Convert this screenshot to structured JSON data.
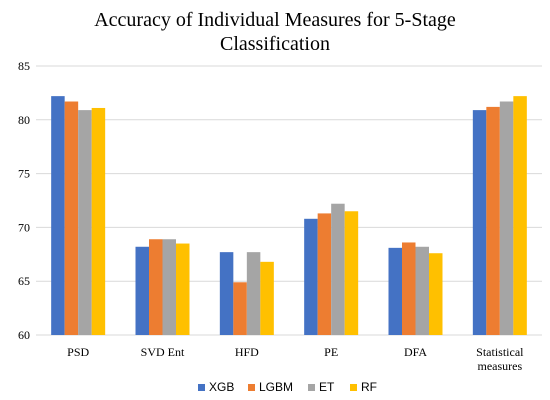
{
  "chart_data": {
    "type": "bar",
    "title": "Accuracy of Individual Measures for 5-Stage Classification",
    "title_lines": [
      "Accuracy of Individual Measures for 5-Stage",
      "Classification"
    ],
    "categories": [
      "PSD",
      "SVD Ent",
      "HFD",
      "PE",
      "DFA",
      "Statistical measures"
    ],
    "category_label_lines": [
      [
        "PSD"
      ],
      [
        "SVD Ent"
      ],
      [
        "HFD"
      ],
      [
        "PE"
      ],
      [
        "DFA"
      ],
      [
        "Statistical",
        "measures"
      ]
    ],
    "series": [
      {
        "name": "XGB",
        "color": "#4472C4",
        "values": [
          82.2,
          68.2,
          67.7,
          70.8,
          68.1,
          80.9
        ]
      },
      {
        "name": "LGBM",
        "color": "#ED7D31",
        "values": [
          81.7,
          68.9,
          64.9,
          71.3,
          68.6,
          81.2
        ]
      },
      {
        "name": "ET",
        "color": "#A5A5A5",
        "values": [
          80.9,
          68.9,
          67.7,
          72.2,
          68.2,
          81.7
        ]
      },
      {
        "name": "RF",
        "color": "#FFC000",
        "values": [
          81.1,
          68.5,
          66.8,
          71.5,
          67.6,
          82.2
        ]
      }
    ],
    "xlabel": "",
    "ylabel": "",
    "ylim": [
      60,
      85
    ],
    "yticks": [
      "60",
      "65",
      "70",
      "75",
      "80",
      "85"
    ],
    "grid": true,
    "legend_position": "bottom"
  }
}
